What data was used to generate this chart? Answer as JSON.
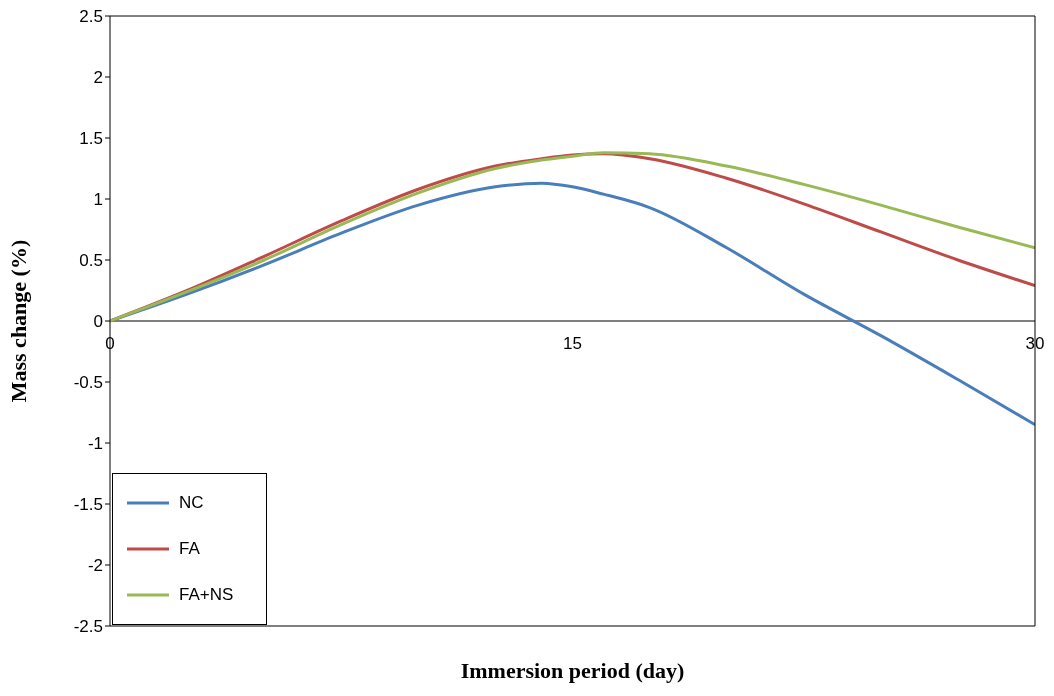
{
  "chart_data": {
    "type": "line",
    "xlabel": "Immersion period (day)",
    "ylabel": "Mass change (%)",
    "x": [
      0,
      2.5,
      5,
      7.5,
      10,
      12.5,
      14,
      15,
      16,
      17.5,
      20,
      22.5,
      25,
      27.5,
      30
    ],
    "series": [
      {
        "name": "NC",
        "color": "#4a7ebb",
        "values": [
          0,
          0.22,
          0.46,
          0.72,
          0.95,
          1.1,
          1.13,
          1.1,
          1.04,
          0.93,
          0.6,
          0.22,
          -0.12,
          -0.48,
          -0.85
        ]
      },
      {
        "name": "FA",
        "color": "#be4b48",
        "values": [
          0,
          0.25,
          0.53,
          0.82,
          1.08,
          1.27,
          1.33,
          1.36,
          1.37,
          1.33,
          1.17,
          0.96,
          0.73,
          0.5,
          0.29
        ]
      },
      {
        "name": "FA+NS",
        "color": "#98b954",
        "values": [
          0,
          0.24,
          0.5,
          0.79,
          1.05,
          1.25,
          1.32,
          1.35,
          1.38,
          1.37,
          1.27,
          1.12,
          0.95,
          0.77,
          0.6
        ]
      }
    ],
    "xlim": [
      0,
      30
    ],
    "xticks": [
      0,
      15,
      30
    ],
    "ylim": [
      -2.5,
      2.5
    ],
    "yticks": [
      -2.5,
      -2,
      -1.5,
      -1,
      -0.5,
      0,
      0.5,
      1,
      1.5,
      2,
      2.5
    ],
    "grid": false,
    "legend": "bottom left",
    "marker": "none",
    "line_style": "solid"
  }
}
